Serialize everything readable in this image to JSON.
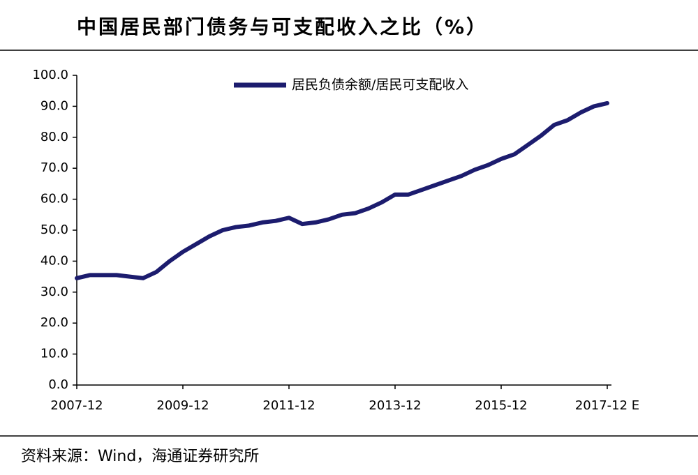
{
  "chart_data": {
    "type": "line",
    "title": "中国居民部门债务与可支配收入之比（%）",
    "source": "资料来源：Wind，海通证券研究所",
    "categories": [
      "2007-12",
      null,
      null,
      null,
      null,
      null,
      null,
      null,
      "2009-12",
      null,
      null,
      null,
      null,
      null,
      null,
      null,
      "2011-12",
      null,
      null,
      null,
      null,
      null,
      null,
      null,
      "2013-12",
      null,
      null,
      null,
      null,
      null,
      null,
      null,
      "2015-12",
      null,
      null,
      null,
      null,
      null,
      null,
      null,
      "2017-12 E"
    ],
    "series": [
      {
        "name": "居民负债余额/居民可支配收入",
        "color": "#1c1c6e",
        "values": [
          34.5,
          35.5,
          35.5,
          35.5,
          35,
          34.5,
          36.5,
          40,
          43,
          45.5,
          48,
          50,
          51,
          51.5,
          52.5,
          53,
          54,
          52,
          52.5,
          53.5,
          55,
          55.5,
          57,
          59,
          61.5,
          61.5,
          63,
          64.5,
          66,
          67.5,
          69.5,
          71,
          73,
          74.5,
          77.5,
          80.5,
          84,
          85.5,
          88,
          90,
          91
        ]
      }
    ],
    "ylim": [
      0,
      100
    ],
    "yticks": [
      {
        "value": 0,
        "label": "0.0"
      },
      {
        "value": 10,
        "label": "10.0"
      },
      {
        "value": 20,
        "label": "20.0"
      },
      {
        "value": 30,
        "label": "30.0"
      },
      {
        "value": 40,
        "label": "40.0"
      },
      {
        "value": 50,
        "label": "50.0"
      },
      {
        "value": 60,
        "label": "60.0"
      },
      {
        "value": 70,
        "label": "70.0"
      },
      {
        "value": 80,
        "label": "80.0"
      },
      {
        "value": 90,
        "label": "90.0"
      },
      {
        "value": 100,
        "label": "100.0"
      }
    ]
  }
}
